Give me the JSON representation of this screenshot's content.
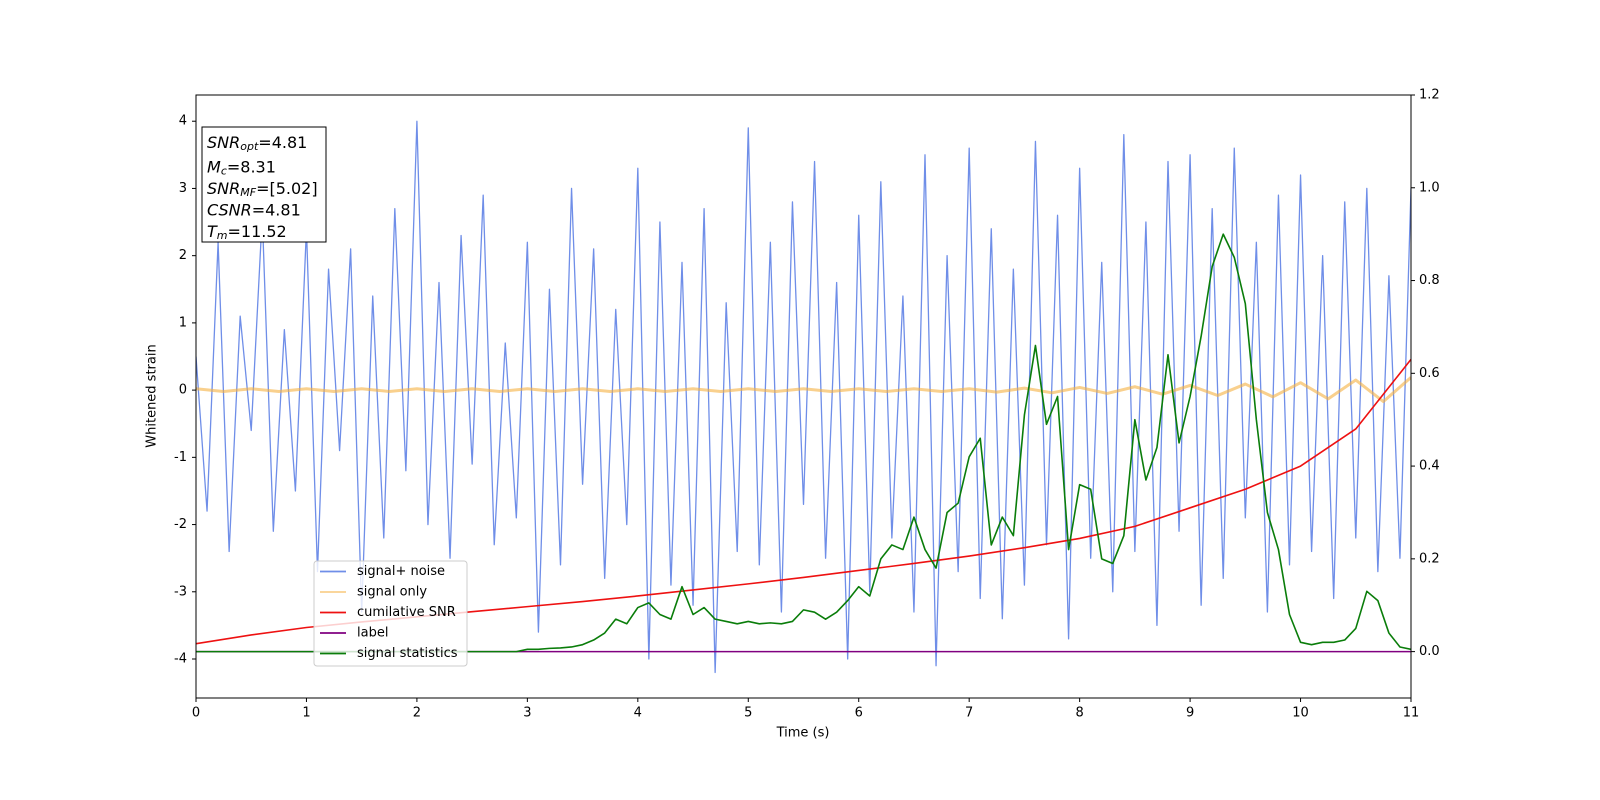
{
  "chart_data": {
    "type": "line",
    "xlabel": "Time (s)",
    "ylabel": "Whitened strain",
    "xlim": [
      0,
      11
    ],
    "xticks": [
      0,
      1,
      2,
      3,
      4,
      5,
      6,
      7,
      8,
      9,
      10,
      11
    ],
    "ylim": [
      -4.58,
      4.39
    ],
    "yticks": [
      -4,
      -3,
      -2,
      -1,
      0,
      1,
      2,
      3,
      4
    ],
    "y2lim": [
      -0.1,
      1.2
    ],
    "y2ticks": [
      {
        "value": 0,
        "label": "0.0"
      },
      0.2,
      0.4,
      0.6,
      0.8,
      {
        "value": 1,
        "label": "1.0"
      },
      1.2
    ],
    "x": [
      0,
      0.1,
      0.2,
      0.3,
      0.4,
      0.5,
      0.6,
      0.7,
      0.8,
      0.9,
      1,
      1.1,
      1.2,
      1.3,
      1.4,
      1.5,
      1.6,
      1.7,
      1.8,
      1.9,
      2,
      2.1,
      2.2,
      2.3,
      2.4,
      2.5,
      2.6,
      2.7,
      2.8,
      2.9,
      3,
      3.1,
      3.2,
      3.3,
      3.4,
      3.5,
      3.6,
      3.7,
      3.8,
      3.9,
      4,
      4.1,
      4.2,
      4.3,
      4.4,
      4.5,
      4.6,
      4.7,
      4.8,
      4.9,
      5,
      5.1,
      5.2,
      5.3,
      5.4,
      5.5,
      5.6,
      5.7,
      5.8,
      5.9,
      6,
      6.1,
      6.2,
      6.3,
      6.4,
      6.5,
      6.6,
      6.7,
      6.8,
      6.9,
      7,
      7.1,
      7.2,
      7.3,
      7.4,
      7.5,
      7.6,
      7.7,
      7.8,
      7.9,
      8,
      8.1,
      8.2,
      8.3,
      8.4,
      8.5,
      8.6,
      8.7,
      8.8,
      8.9,
      9,
      9.1,
      9.2,
      9.3,
      9.4,
      9.5,
      9.6,
      9.7,
      9.8,
      9.9,
      10,
      10.1,
      10.2,
      10.3,
      10.4,
      10.5,
      10.6,
      10.7,
      10.8,
      10.9,
      11
    ],
    "series": [
      {
        "name": "signal+ noise",
        "color": "#6f8ee8",
        "values": [
          0.5,
          -1.8,
          2.2,
          -2.4,
          1.1,
          -0.6,
          2.6,
          -2.1,
          0.9,
          -1.5,
          2.4,
          -2.7,
          1.8,
          -0.9,
          2.1,
          -3.3,
          1.4,
          -2.2,
          2.7,
          -1.2,
          4.0,
          -2.0,
          1.6,
          -2.5,
          2.3,
          -1.1,
          2.9,
          -2.3,
          0.7,
          -1.9,
          2.2,
          -3.6,
          1.5,
          -2.6,
          3.0,
          -1.4,
          2.1,
          -2.8,
          1.2,
          -2.0,
          3.3,
          -4.0,
          2.5,
          -2.9,
          1.9,
          -3.2,
          2.7,
          -4.2,
          1.3,
          -2.4,
          3.9,
          -2.6,
          2.2,
          -3.3,
          2.8,
          -1.7,
          3.4,
          -2.5,
          1.6,
          -4.0,
          2.6,
          -3.0,
          3.1,
          -2.2,
          1.4,
          -3.3,
          3.5,
          -4.1,
          2.0,
          -2.7,
          3.6,
          -3.1,
          2.4,
          -3.4,
          1.8,
          -2.9,
          3.7,
          -2.3,
          2.6,
          -3.7,
          3.3,
          -2.5,
          1.9,
          -3.0,
          3.8,
          -2.4,
          2.5,
          -3.5,
          3.4,
          -2.1,
          3.5,
          -3.2,
          2.7,
          -2.8,
          3.6,
          -1.9,
          2.2,
          -3.3,
          2.9,
          -2.6,
          3.2,
          -2.4,
          2.0,
          -3.1,
          2.8,
          -2.2,
          3.0,
          -2.7,
          1.7,
          -2.5,
          3.0
        ]
      },
      {
        "name": "signal only",
        "color": "#f5b041",
        "x": [
          0,
          0.25,
          0.5,
          0.75,
          1,
          1.25,
          1.5,
          1.75,
          2,
          2.25,
          2.5,
          2.75,
          3,
          3.25,
          3.5,
          3.75,
          4,
          4.25,
          4.5,
          4.75,
          5,
          5.25,
          5.5,
          5.75,
          6,
          6.25,
          6.5,
          6.75,
          7,
          7.25,
          7.5,
          7.75,
          8,
          8.25,
          8.5,
          8.75,
          9,
          9.25,
          9.5,
          9.75,
          10,
          10.25,
          10.5,
          10.75,
          11
        ],
        "values": [
          0.02,
          -0.02,
          0.02,
          -0.02,
          0.02,
          -0.02,
          0.02,
          -0.02,
          0.02,
          -0.02,
          0.02,
          -0.02,
          0.02,
          -0.02,
          0.02,
          -0.02,
          0.02,
          -0.02,
          0.02,
          -0.02,
          0.02,
          -0.02,
          0.02,
          -0.02,
          0.02,
          -0.02,
          0.02,
          -0.02,
          0.02,
          -0.03,
          0.03,
          -0.04,
          0.04,
          -0.05,
          0.05,
          -0.06,
          0.07,
          -0.08,
          0.09,
          -0.1,
          0.11,
          -0.13,
          0.15,
          -0.17,
          0.19
        ]
      },
      {
        "name": "cumilative SNR",
        "color": "#ee1111",
        "axis": "y2",
        "x": [
          0,
          0.5,
          1,
          1.5,
          2,
          2.5,
          3,
          3.5,
          4,
          4.5,
          5,
          5.5,
          6,
          6.5,
          7,
          7.5,
          8,
          8.5,
          9,
          9.5,
          10,
          10.5,
          11
        ],
        "values": [
          0.017,
          0.036,
          0.052,
          0.064,
          0.075,
          0.086,
          0.097,
          0.108,
          0.12,
          0.133,
          0.146,
          0.16,
          0.175,
          0.19,
          0.206,
          0.224,
          0.244,
          0.27,
          0.31,
          0.35,
          0.4,
          0.48,
          0.63
        ]
      },
      {
        "name": "label",
        "color": "#800080",
        "axis": "y2",
        "x": [
          0,
          11
        ],
        "values": [
          0,
          0
        ]
      },
      {
        "name": "signal statistics",
        "color": "#0a7d0a",
        "axis": "y2",
        "values": [
          0,
          0,
          0,
          0,
          0,
          0,
          0,
          0,
          0,
          0,
          0,
          0,
          0,
          0,
          0,
          0,
          0,
          0,
          0,
          0,
          0,
          0,
          0,
          0,
          0,
          0,
          0,
          0,
          0,
          0,
          0.005,
          0.005,
          0.007,
          0.008,
          0.01,
          0.015,
          0.025,
          0.04,
          0.07,
          0.06,
          0.095,
          0.105,
          0.08,
          0.07,
          0.14,
          0.08,
          0.095,
          0.07,
          0.065,
          0.06,
          0.065,
          0.06,
          0.062,
          0.06,
          0.065,
          0.09,
          0.085,
          0.07,
          0.085,
          0.11,
          0.14,
          0.12,
          0.2,
          0.23,
          0.22,
          0.29,
          0.22,
          0.18,
          0.3,
          0.32,
          0.42,
          0.46,
          0.23,
          0.29,
          0.25,
          0.51,
          0.66,
          0.49,
          0.55,
          0.22,
          0.36,
          0.35,
          0.2,
          0.19,
          0.25,
          0.5,
          0.37,
          0.44,
          0.64,
          0.45,
          0.55,
          0.68,
          0.83,
          0.9,
          0.85,
          0.75,
          0.5,
          0.3,
          0.22,
          0.08,
          0.02,
          0.015,
          0.02,
          0.02,
          0.025,
          0.05,
          0.13,
          0.11,
          0.04,
          0.01,
          0.005
        ]
      }
    ],
    "annotation": [
      {
        "main": "SNR",
        "sub": "opt",
        "rest": "=4.81"
      },
      {
        "main": "M",
        "sub": "c",
        "rest": "=8.31"
      },
      {
        "main": "SNR",
        "sub": "MF",
        "rest": "=[5.02]"
      },
      {
        "main": "CSNR",
        "rest": "=4.81"
      },
      {
        "main": "T",
        "sub": "m",
        "rest": "=11.52"
      }
    ]
  }
}
